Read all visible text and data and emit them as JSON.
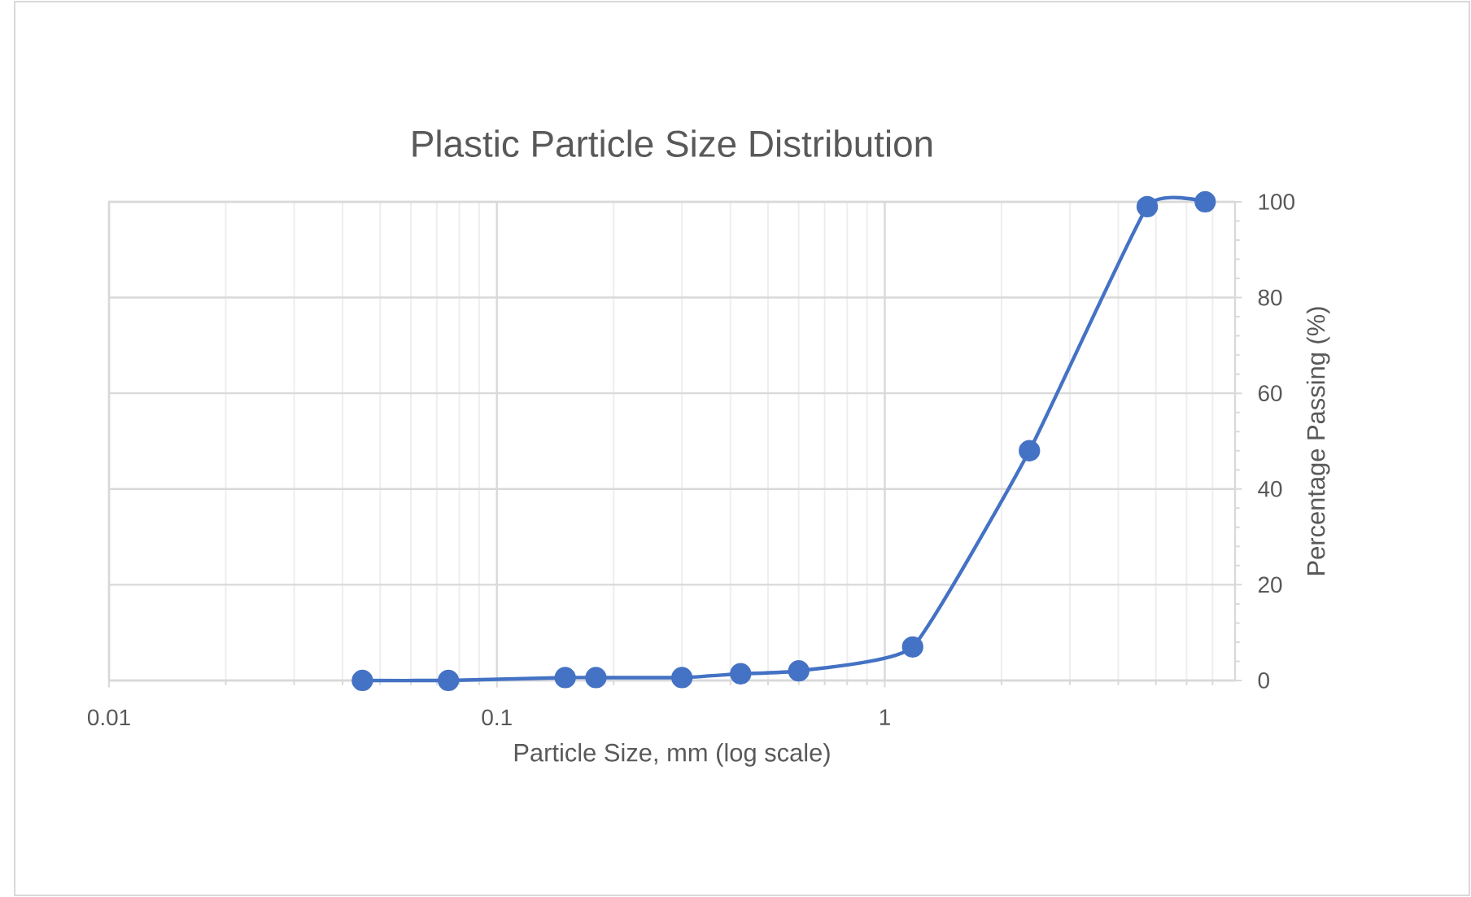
{
  "chart_data": {
    "type": "line",
    "title": "Plastic Particle Size Distribution",
    "xlabel": "Particle Size, mm (log scale)",
    "ylabel": "Percentage Passing (%)",
    "x": [
      0.045,
      0.075,
      0.15,
      0.18,
      0.3,
      0.425,
      0.6,
      1.18,
      2.36,
      4.75,
      6.7
    ],
    "series": [
      {
        "color": "#4472c4",
        "values": [
          0,
          0,
          0.6,
          0.6,
          0.6,
          1.4,
          2,
          7,
          48,
          99,
          100
        ]
      }
    ],
    "log": "x",
    "xlim": [
      0.01,
      8
    ],
    "xticks": [
      0.01,
      0.1,
      1
    ],
    "ylim": [
      0,
      100
    ],
    "yticks": [
      0,
      20,
      40,
      60,
      80,
      100
    ],
    "grid": true,
    "marker": "circle",
    "line_style": "solid"
  }
}
